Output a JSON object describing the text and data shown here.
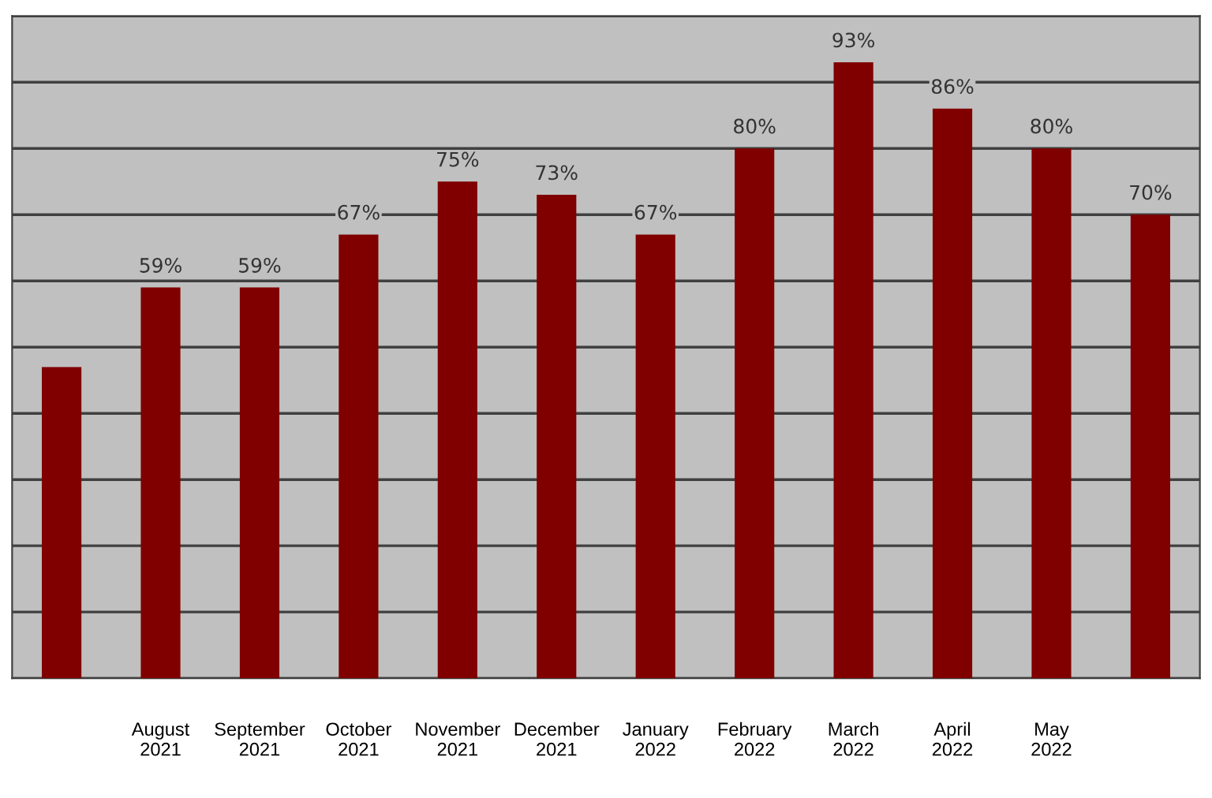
{
  "chart_data": {
    "type": "bar",
    "categories": [
      null,
      "August\n2021",
      "September\n2021",
      "October\n2021",
      "November\n2021",
      "December\n2021",
      "January\n2022",
      "February\n2022",
      "March\n2022",
      "April\n2022",
      "May\n2022",
      null
    ],
    "values": [
      47,
      59,
      59,
      67,
      75,
      73,
      67,
      80,
      93,
      86,
      80,
      70
    ],
    "value_labels": [
      null,
      "59%",
      "59%",
      "67%",
      "75%",
      "73%",
      "67%",
      "80%",
      "93%",
      "86%",
      "80%",
      "70%"
    ],
    "color": "#800000",
    "ylim": [
      0,
      100
    ],
    "yticks": [
      {
        "value": 0,
        "label": null
      },
      {
        "value": 10,
        "label": null
      },
      {
        "value": 20,
        "label": null
      },
      {
        "value": 30,
        "label": null
      },
      {
        "value": 40,
        "label": null
      },
      {
        "value": 50,
        "label": null
      },
      {
        "value": 60,
        "label": null
      },
      {
        "value": 70,
        "label": null
      },
      {
        "value": 80,
        "label": null
      },
      {
        "value": 90,
        "label": null
      },
      {
        "value": 100,
        "label": null
      }
    ],
    "grid": "y",
    "tick_labels": "x",
    "legend": false
  }
}
